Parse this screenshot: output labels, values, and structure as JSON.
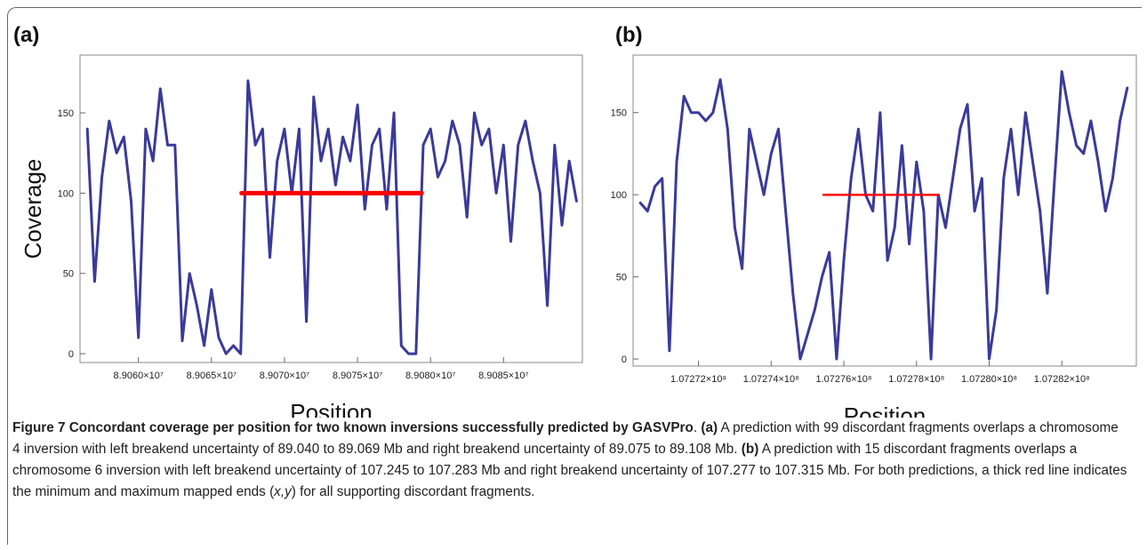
{
  "chart_data": [
    {
      "type": "line",
      "panel_label": "(a)",
      "ylabel": "Coverage",
      "xlabel": "Position",
      "xlim": [
        89056000,
        89090400
      ],
      "ylim": [
        -5.5,
        186
      ],
      "xticks": [
        {
          "value": 89060000,
          "label": "8.9060×10⁷"
        },
        {
          "value": 89065000,
          "label": "8.9065×10⁷"
        },
        {
          "value": 89070000,
          "label": "8.9070×10⁷"
        },
        {
          "value": 89075000,
          "label": "8.9075×10⁷"
        },
        {
          "value": 89080000,
          "label": "8.9080×10⁷"
        },
        {
          "value": 89085000,
          "label": "8.9085×10⁷"
        }
      ],
      "yticks": [
        0,
        50,
        100,
        150
      ],
      "series": [
        {
          "color": "#3a3a9a",
          "line_width": 3,
          "x": [
            89056500,
            89057000,
            89057500,
            89058000,
            89058500,
            89059000,
            89059500,
            89060000,
            89060500,
            89061000,
            89061500,
            89062000,
            89062500,
            89063000,
            89063500,
            89064000,
            89064500,
            89065000,
            89065500,
            89066000,
            89066500,
            89067000,
            89067500,
            89068000,
            89068500,
            89069000,
            89069500,
            89070000,
            89070500,
            89071000,
            89071500,
            89072000,
            89072500,
            89073000,
            89073500,
            89074000,
            89074500,
            89075000,
            89075500,
            89076000,
            89076500,
            89077000,
            89077500,
            89078000,
            89078500,
            89079000,
            89079500,
            89080000,
            89080500,
            89081000,
            89081500,
            89082000,
            89082500,
            89083000,
            89083500,
            89084000,
            89084500,
            89085000,
            89085500,
            89086000,
            89086500,
            89087000,
            89087500,
            89088000,
            89088500,
            89089000,
            89089500,
            89090000
          ],
          "values": [
            140,
            45,
            110,
            145,
            125,
            135,
            95,
            10,
            140,
            120,
            165,
            130,
            130,
            8,
            50,
            30,
            5,
            40,
            10,
            0,
            5,
            0,
            170,
            130,
            140,
            60,
            120,
            140,
            100,
            140,
            20,
            160,
            120,
            140,
            105,
            135,
            120,
            155,
            90,
            130,
            140,
            90,
            150,
            5,
            0,
            0,
            130,
            140,
            110,
            120,
            145,
            130,
            85,
            150,
            130,
            140,
            100,
            130,
            70,
            130,
            145,
            120,
            100,
            30,
            130,
            80,
            120,
            95
          ]
        },
        {
          "color": "#ff0000",
          "line_width": 5,
          "x": [
            89067060,
            89079394
          ],
          "values": [
            100,
            100
          ]
        }
      ]
    },
    {
      "type": "line",
      "panel_label": "(b)",
      "xlabel": "Position",
      "xlim": [
        107270200,
        107284050
      ],
      "ylim": [
        -4.3,
        185
      ],
      "xticks": [
        {
          "value": 107272000,
          "label": "1.07272×10⁸"
        },
        {
          "value": 107274000,
          "label": "1.07274×10⁸"
        },
        {
          "value": 107276000,
          "label": "1.07276×10⁸"
        },
        {
          "value": 107278000,
          "label": "1.07278×10⁸"
        },
        {
          "value": 107280000,
          "label": "1.07280×10⁸"
        },
        {
          "value": 107282000,
          "label": "1.07282×10⁸"
        }
      ],
      "yticks": [
        0,
        50,
        100,
        150
      ],
      "series": [
        {
          "color": "#3a3a9a",
          "line_width": 3,
          "x": [
            107270400,
            107270600,
            107270800,
            107271000,
            107271200,
            107271400,
            107271600,
            107271800,
            107272000,
            107272200,
            107272400,
            107272600,
            107272800,
            107273000,
            107273200,
            107273400,
            107273600,
            107273800,
            107274000,
            107274200,
            107274400,
            107274600,
            107274800,
            107275000,
            107275200,
            107275400,
            107275600,
            107275800,
            107276000,
            107276200,
            107276400,
            107276600,
            107276800,
            107277000,
            107277200,
            107277400,
            107277600,
            107277800,
            107278000,
            107278200,
            107278400,
            107278600,
            107278800,
            107279000,
            107279200,
            107279400,
            107279600,
            107279800,
            107280000,
            107280200,
            107280400,
            107280600,
            107280800,
            107281000,
            107281200,
            107281400,
            107281600,
            107281800,
            107282000,
            107282200,
            107282400,
            107282600,
            107282800,
            107283000,
            107283200,
            107283400,
            107283600,
            107283800
          ],
          "values": [
            95,
            90,
            105,
            110,
            5,
            120,
            160,
            150,
            150,
            145,
            150,
            170,
            140,
            80,
            55,
            140,
            120,
            100,
            125,
            140,
            90,
            40,
            0,
            15,
            30,
            50,
            65,
            0,
            60,
            110,
            140,
            100,
            90,
            150,
            60,
            80,
            130,
            70,
            120,
            90,
            0,
            100,
            80,
            110,
            140,
            155,
            90,
            110,
            0,
            30,
            110,
            140,
            100,
            150,
            120,
            90,
            40,
            110,
            175,
            150,
            130,
            125,
            145,
            120,
            90,
            110,
            145,
            165
          ]
        },
        {
          "color": "#ff0000",
          "line_width": 2.5,
          "x": [
            107275438,
            107278611
          ],
          "values": [
            100,
            100
          ]
        }
      ]
    }
  ],
  "caption": [
    {
      "text": "Figure 7 Concordant coverage per position for two known inversions successfully predicted by GASVPro",
      "bold": true
    },
    {
      "text": ". "
    },
    {
      "text": "(a)",
      "bold": true
    },
    {
      "text": " A prediction with 99 discordant fragments overlaps a chromosome 4 inversion with left breakend uncertainty of 89.040 to 89.069 Mb and right breakend uncertainty of 89.075 to 89.108 Mb. "
    },
    {
      "text": "(b)",
      "bold": true
    },
    {
      "text": " A prediction with 15 discordant fragments overlaps a chromosome 6 inversion with left breakend uncertainty of 107.245 to 107.283 Mb and right breakend uncertainty of 107.277 to 107.315 Mb. For both predictions, a thick red line indicates the minimum and maximum mapped ends ("
    },
    {
      "text": "x,y",
      "italic": true
    },
    {
      "text": ") for all supporting discordant fragments."
    }
  ]
}
